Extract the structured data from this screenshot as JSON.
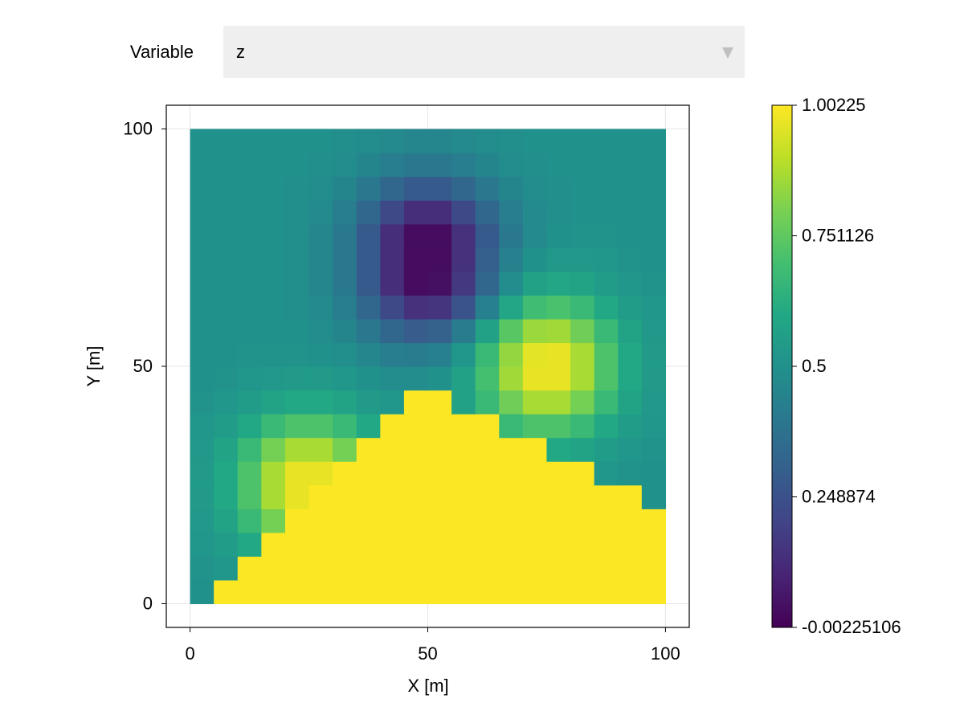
{
  "controls": {
    "label": "Variable",
    "selected": "z"
  },
  "chart_data": {
    "type": "heatmap",
    "xlabel": "X [m]",
    "ylabel": "Y [m]",
    "x": [
      2.5,
      7.5,
      12.5,
      17.5,
      22.5,
      27.5,
      32.5,
      37.5,
      42.5,
      47.5,
      52.5,
      57.5,
      62.5,
      67.5,
      72.5,
      77.5,
      82.5,
      87.5,
      92.5,
      97.5
    ],
    "y": [
      2.5,
      7.5,
      12.5,
      17.5,
      22.5,
      27.5,
      32.5,
      37.5,
      42.5,
      47.5,
      52.5,
      57.5,
      62.5,
      67.5,
      72.5,
      77.5,
      82.5,
      87.5,
      92.5,
      97.5
    ],
    "z": [
      [
        0.5,
        1,
        1,
        1,
        1,
        1,
        1,
        1,
        1,
        1,
        1,
        1,
        1,
        1,
        1,
        1,
        1,
        1,
        1,
        1
      ],
      [
        0.51,
        0.52,
        1,
        1,
        1,
        1,
        1,
        1,
        1,
        1,
        1,
        1,
        1,
        1,
        1,
        1,
        1,
        1,
        1,
        1
      ],
      [
        0.52,
        0.55,
        0.6,
        1,
        1,
        1,
        1,
        1,
        1,
        1,
        1,
        1,
        1,
        1,
        1,
        1,
        1,
        1,
        1,
        1
      ],
      [
        0.53,
        0.58,
        0.67,
        0.79,
        1,
        1,
        1,
        1,
        1,
        1,
        1,
        1,
        1,
        1,
        1,
        1,
        1,
        1,
        1,
        1
      ],
      [
        0.54,
        0.6,
        0.72,
        0.87,
        0.97,
        1,
        1,
        1,
        1,
        1,
        1,
        1,
        1,
        1,
        1,
        1,
        1,
        1,
        1,
        0.5
      ],
      [
        0.54,
        0.6,
        0.72,
        0.87,
        0.97,
        0.97,
        1,
        1,
        1,
        1,
        1,
        1,
        1,
        1,
        1,
        1,
        1,
        0.52,
        0.51,
        0.5
      ],
      [
        0.53,
        0.58,
        0.67,
        0.79,
        0.87,
        0.87,
        0.79,
        1,
        1,
        1,
        1,
        1,
        1,
        1,
        1,
        0.6,
        0.58,
        0.55,
        0.52,
        0.51
      ],
      [
        0.52,
        0.55,
        0.6,
        0.67,
        0.72,
        0.72,
        0.67,
        0.6,
        1,
        1,
        1,
        1,
        1,
        0.67,
        0.72,
        0.72,
        0.67,
        0.6,
        0.55,
        0.52
      ],
      [
        0.51,
        0.52,
        0.55,
        0.58,
        0.6,
        0.6,
        0.58,
        0.54,
        0.52,
        1,
        1,
        0.57,
        0.67,
        0.78,
        0.87,
        0.87,
        0.79,
        0.67,
        0.58,
        0.53
      ],
      [
        0.5,
        0.51,
        0.52,
        0.53,
        0.54,
        0.54,
        0.52,
        0.5,
        0.48,
        0.48,
        0.5,
        0.57,
        0.7,
        0.86,
        0.97,
        0.97,
        0.87,
        0.72,
        0.6,
        0.54
      ],
      [
        0.5,
        0.5,
        0.51,
        0.51,
        0.51,
        0.5,
        0.49,
        0.46,
        0.42,
        0.41,
        0.43,
        0.52,
        0.67,
        0.84,
        0.96,
        0.97,
        0.87,
        0.72,
        0.6,
        0.54
      ],
      [
        0.5,
        0.5,
        0.5,
        0.5,
        0.5,
        0.48,
        0.45,
        0.4,
        0.33,
        0.29,
        0.31,
        0.41,
        0.57,
        0.74,
        0.85,
        0.86,
        0.78,
        0.67,
        0.58,
        0.53
      ],
      [
        0.5,
        0.5,
        0.5,
        0.5,
        0.49,
        0.47,
        0.42,
        0.33,
        0.22,
        0.14,
        0.15,
        0.26,
        0.43,
        0.59,
        0.69,
        0.71,
        0.67,
        0.6,
        0.55,
        0.52
      ],
      [
        0.5,
        0.5,
        0.5,
        0.5,
        0.49,
        0.46,
        0.4,
        0.28,
        0.13,
        0.03,
        0.04,
        0.16,
        0.33,
        0.48,
        0.57,
        0.59,
        0.58,
        0.55,
        0.52,
        0.51
      ],
      [
        0.5,
        0.5,
        0.5,
        0.5,
        0.49,
        0.46,
        0.4,
        0.28,
        0.13,
        0.03,
        0.03,
        0.14,
        0.3,
        0.43,
        0.5,
        0.53,
        0.53,
        0.52,
        0.51,
        0.5
      ],
      [
        0.5,
        0.5,
        0.5,
        0.5,
        0.49,
        0.46,
        0.4,
        0.28,
        0.13,
        0.03,
        0.03,
        0.14,
        0.28,
        0.4,
        0.47,
        0.5,
        0.51,
        0.51,
        0.5,
        0.5
      ],
      [
        0.5,
        0.5,
        0.5,
        0.5,
        0.49,
        0.47,
        0.42,
        0.33,
        0.22,
        0.13,
        0.13,
        0.22,
        0.33,
        0.42,
        0.47,
        0.49,
        0.5,
        0.5,
        0.5,
        0.5
      ],
      [
        0.5,
        0.5,
        0.5,
        0.5,
        0.49,
        0.48,
        0.45,
        0.4,
        0.33,
        0.28,
        0.28,
        0.33,
        0.4,
        0.45,
        0.48,
        0.49,
        0.5,
        0.5,
        0.5,
        0.5
      ],
      [
        0.5,
        0.5,
        0.5,
        0.5,
        0.5,
        0.49,
        0.48,
        0.45,
        0.42,
        0.4,
        0.4,
        0.42,
        0.45,
        0.48,
        0.49,
        0.5,
        0.5,
        0.5,
        0.5,
        0.5
      ],
      [
        0.5,
        0.5,
        0.5,
        0.5,
        0.5,
        0.5,
        0.49,
        0.48,
        0.47,
        0.46,
        0.46,
        0.47,
        0.48,
        0.49,
        0.5,
        0.5,
        0.5,
        0.5,
        0.5,
        0.5
      ]
    ],
    "xlim": [
      -5,
      105
    ],
    "ylim": [
      -5,
      105
    ],
    "xticks": [
      0,
      50,
      100
    ],
    "yticks": [
      0,
      50,
      100
    ],
    "grid": true,
    "colormap": "viridis",
    "clim": [
      -0.00225106,
      1.00225
    ],
    "colorbar_ticks": [
      -0.00225106,
      0.248874,
      0.5,
      0.751126,
      1.00225
    ]
  }
}
